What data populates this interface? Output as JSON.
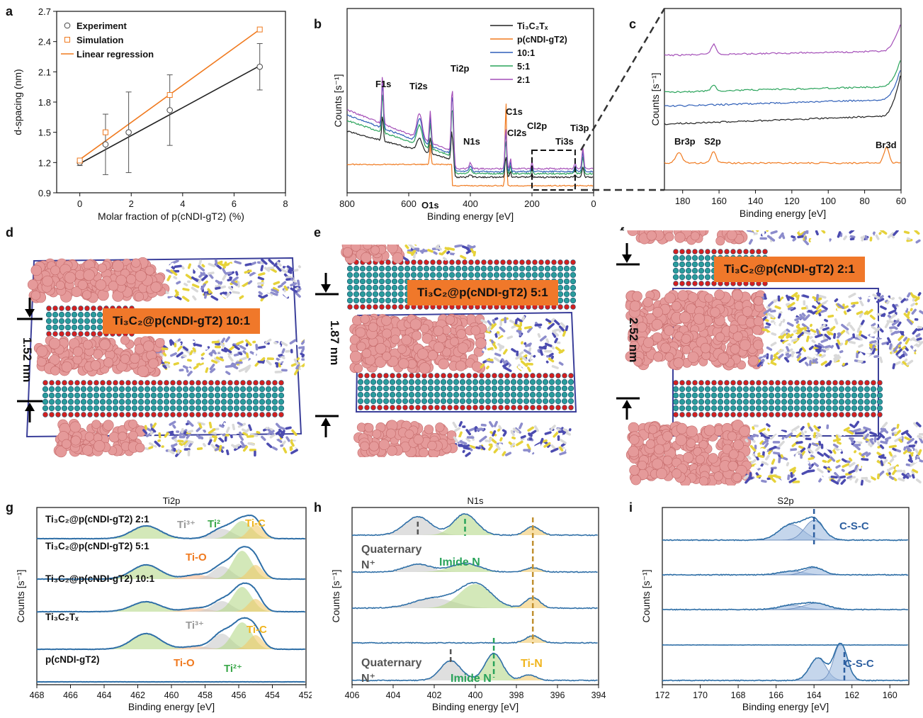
{
  "panel_letters": {
    "a": "a",
    "b": "b",
    "c": "c",
    "d": "d",
    "e": "e",
    "f": "f",
    "g": "g",
    "h": "h",
    "i": "i"
  },
  "colors": {
    "orange": "#f07a1f",
    "black": "#222222",
    "blue": "#2f5fb8",
    "green": "#29a35a",
    "purple": "#a44fb8",
    "xps_blue": "#2f6fa7",
    "grey_fill": "#c9c9c9",
    "green_fill": "#b6d98a",
    "yellow_fill": "#f2c96a",
    "ti_o_color": "#f07a1f",
    "ti_c_color": "#f0b51f",
    "ti2_color": "#3ba84a",
    "ti3_color": "#9a9a9a",
    "sulfur_fill": "#9ebbe0"
  },
  "chart_data": [
    {
      "id": "a",
      "type": "scatter",
      "xlabel": "Molar fraction of p(cNDI-gT2) (%)",
      "ylabel": "d-spacing (nm)",
      "xlim": [
        -0.9,
        8
      ],
      "ylim": [
        0.9,
        2.7
      ],
      "xticks": [
        "0",
        "2",
        "4",
        "6",
        "8"
      ],
      "yticks": [
        "0.9",
        "1.2",
        "1.5",
        "1.8",
        "2.1",
        "2.4",
        "2.7"
      ],
      "legend": [
        "Experiment",
        "Simulation",
        "Linear regression"
      ],
      "series": [
        {
          "name": "Experiment",
          "x": [
            0,
            1,
            1.9,
            3.5,
            7
          ],
          "y": [
            1.2,
            1.38,
            1.5,
            1.72,
            2.15
          ],
          "err": [
            0.03,
            0.3,
            0.4,
            0.35,
            0.23
          ]
        },
        {
          "name": "Simulation",
          "x": [
            0,
            1,
            3.5,
            7
          ],
          "y": [
            1.22,
            1.5,
            1.87,
            2.52
          ]
        }
      ],
      "lines": [
        {
          "name": "Experiment fit",
          "x": [
            0,
            7
          ],
          "y": [
            1.19,
            2.16
          ]
        },
        {
          "name": "Linear regression",
          "x": [
            0,
            7
          ],
          "y": [
            1.23,
            2.52
          ]
        }
      ]
    },
    {
      "id": "b",
      "type": "line",
      "xlabel": "Binding energy [eV]",
      "ylabel": "Counts [s⁻¹]",
      "xlim": [
        800,
        0
      ],
      "xticks": [
        "800",
        "600",
        "400",
        "200",
        "0"
      ],
      "legend_series": [
        "Ti₃C₂Tₓ",
        "p(cNDI-gT2)",
        "10:1",
        "5:1",
        "2:1"
      ],
      "peak_labels": [
        "F1s",
        "Ti2s",
        "Ti2p",
        "N1s",
        "C1s",
        "Cl2s",
        "Cl2p",
        "Ti3s",
        "Ti3p",
        "O1s"
      ]
    },
    {
      "id": "c",
      "type": "line",
      "xlabel": "Binding energy [eV]",
      "ylabel": "Counts [s⁻¹]",
      "xlim": [
        190,
        60
      ],
      "xticks": [
        "180",
        "160",
        "140",
        "120",
        "100",
        "80",
        "60"
      ],
      "peak_labels": [
        "Br3p",
        "S2p",
        "Br3d"
      ]
    },
    {
      "id": "g",
      "type": "line",
      "title": "Ti2p",
      "xlabel": "Binding energy [eV]",
      "ylabel": "Counts [s⁻¹]",
      "xlim": [
        468,
        452
      ],
      "xticks": [
        "468",
        "466",
        "464",
        "462",
        "460",
        "458",
        "456",
        "454",
        "452"
      ],
      "rows": [
        "Ti₃C₂@p(cNDI-gT2) 2:1",
        "Ti₃C₂@p(cNDI-gT2) 5:1",
        "Ti₃C₂@p(cNDI-gT2) 10:1",
        "Ti₃C₂Tₓ",
        "p(cNDI-gT2)"
      ],
      "annotations": [
        "Ti³⁺",
        "Ti²",
        "Ti-C",
        "Ti-O",
        "Ti³⁺",
        "Ti-C",
        "Ti-O",
        "Ti²⁺"
      ]
    },
    {
      "id": "h",
      "type": "line",
      "title": "N1s",
      "xlabel": "Binding energy [eV]",
      "ylabel": "Counts [s⁻¹]",
      "xlim": [
        406,
        394
      ],
      "xticks": [
        "406",
        "404",
        "402",
        "400",
        "398",
        "396",
        "394"
      ],
      "annotations": [
        "Quaternary",
        "N⁺",
        "Imide N",
        "Quaternary",
        "N⁺",
        "Imide N",
        "Ti-N"
      ]
    },
    {
      "id": "i",
      "type": "line",
      "title": "S2p",
      "xlabel": "Binding energy [eV]",
      "ylabel": "Counts [s⁻¹]",
      "xlim": [
        172,
        159
      ],
      "xticks": [
        "172",
        "170",
        "168",
        "166",
        "164",
        "162",
        "160"
      ],
      "annotations": [
        "C-S-C",
        "C-S-C"
      ]
    }
  ],
  "structures": {
    "d": {
      "label": "Ti₃C₂@p(cNDI-gT2) 10:1",
      "spacing": "1.52 nm"
    },
    "e": {
      "label": "Ti₃C₂@p(cNDI-gT2) 5:1",
      "spacing": "1.87 nm"
    },
    "f": {
      "label": "Ti₃C₂@p(cNDI-gT2) 2:1",
      "spacing": "2.52 nm"
    }
  }
}
